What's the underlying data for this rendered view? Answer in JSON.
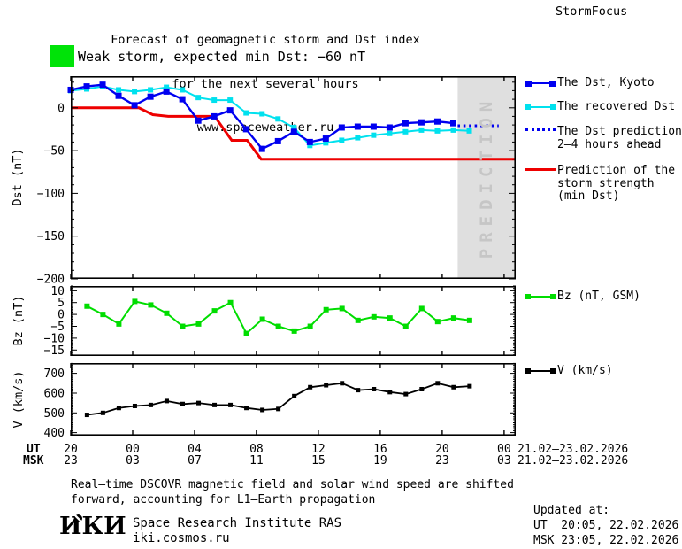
{
  "header": {
    "title_line1": "Forecast of geomagnetic storm and Dst index",
    "title_line2": "for the next several hours",
    "title_line3": "www.spaceweather.ru",
    "brand": "StormFocus"
  },
  "storm_banner": {
    "label": "Weak storm, expected min Dst: −60 nT",
    "swatch_color": "#00e308"
  },
  "legend": {
    "dst_kyoto": "The Dst, Kyoto",
    "recovered": "The recovered Dst",
    "prediction_line1": "The Dst prediction",
    "prediction_line2": "2–4 hours ahead",
    "strength_line1": "Prediction of the",
    "strength_line2": "storm strength",
    "strength_line3": "(min Dst)",
    "bz": "Bz (nT, GSM)",
    "v": "V (km/s)"
  },
  "axis": {
    "ut_label": "UT",
    "msk_label": "MSK",
    "ut_values": [
      "20",
      "00",
      "04",
      "08",
      "12",
      "16",
      "20",
      "00"
    ],
    "msk_values": [
      "23",
      "03",
      "07",
      "11",
      "15",
      "19",
      "23",
      "03"
    ],
    "ut_date": "21.02–23.02.2026",
    "msk_date": "21.02–23.02.2026"
  },
  "footer": {
    "note_line1": "Real–time DSCOVR magnetic field and solar wind speed are shifted",
    "note_line2": "forward, accounting for L1–Earth propagation",
    "logo": "ИКИ",
    "institute": "Space Research Institute RAS",
    "site": "iki.cosmos.ru",
    "updated_label": "Updated at:",
    "updated_ut": "UT  20:05, 22.02.2026",
    "updated_msk": "MSK 23:05, 22.02.2026"
  },
  "colors": {
    "blue": "#0000f0",
    "cyan": "#00e1ee",
    "red": "#ee0000",
    "green": "#00e308",
    "green2": "#00dd00",
    "black": "#000000",
    "band": "#dfdfdf",
    "band_text": "#c6c6c6"
  },
  "chart_data": [
    {
      "id": "dst",
      "type": "line",
      "ylabel": "Dst (nT)",
      "xlim": [
        0,
        28.75
      ],
      "ylim": [
        -200,
        37
      ],
      "yticks": [
        0,
        -50,
        -100,
        -150,
        -200
      ],
      "ytick_minor": 10,
      "xticks": [
        0,
        4,
        8,
        12,
        16,
        20,
        24,
        28
      ],
      "x_note": "hours after 20:00 UT 21.02.2026, hourly points",
      "prediction_band": {
        "x0": 25.0,
        "x1": 28.75,
        "label": "PREDICTION"
      },
      "series": [
        {
          "name": "The recovered Dst",
          "color": "#00e1ee",
          "width": 2,
          "marker": true,
          "marker_size": 6,
          "x_start": 0,
          "step": 1.03,
          "values": [
            20,
            22,
            25,
            21,
            19,
            21,
            24,
            21,
            12,
            9,
            9,
            -6,
            -7,
            -13,
            -23,
            -44,
            -41,
            -38,
            -35,
            -32,
            -30,
            -28,
            -26,
            -27,
            -26,
            -27
          ]
        },
        {
          "name": "Prediction of the storm strength (min Dst)",
          "color": "#ee0000",
          "width": 3,
          "points": [
            [
              0,
              0
            ],
            [
              4.4,
              0
            ],
            [
              5.3,
              -8
            ],
            [
              6.3,
              -10
            ],
            [
              9.3,
              -10
            ],
            [
              10.4,
              -38
            ],
            [
              11.4,
              -38
            ],
            [
              12.3,
              -60
            ],
            [
              28.75,
              -60
            ]
          ]
        },
        {
          "name": "The Dst, Kyoto",
          "color": "#0000f0",
          "width": 2.4,
          "marker": true,
          "marker_size": 7,
          "x_start": 0,
          "step": 1.03,
          "values": [
            21,
            25,
            27,
            14,
            3,
            13,
            19,
            10,
            -15,
            -10,
            -3,
            -25,
            -48,
            -39,
            -28,
            -40,
            -36,
            -23,
            -22,
            -22,
            -23,
            -18,
            -17,
            -16,
            -18
          ]
        },
        {
          "name": "The Dst prediction 2–4 hours ahead",
          "color": "#0000f0",
          "width": 3,
          "style": "dotted",
          "segment": {
            "x0": 25.0,
            "x1": 27.65,
            "y": -21
          }
        }
      ]
    },
    {
      "id": "bz",
      "type": "line",
      "ylabel": "Bz (nT)",
      "xlim": [
        0,
        28.75
      ],
      "ylim": [
        -17.5,
        12
      ],
      "yticks": [
        10,
        5,
        0,
        -5,
        -10,
        -15
      ],
      "ytick_minor": 1,
      "xticks": [
        0,
        4,
        8,
        12,
        16,
        20,
        24,
        28
      ],
      "series": [
        {
          "name": "Bz (nT, GSM)",
          "color": "#00dd00",
          "width": 2,
          "marker": true,
          "marker_size": 6,
          "x_start": 1.05,
          "step": 1.03,
          "values": [
            3.5,
            0,
            -4,
            5.5,
            4,
            0.5,
            -5,
            -4,
            1.5,
            5,
            -8,
            -2,
            -5,
            -7,
            -5,
            2,
            2.5,
            -2.5,
            -1,
            -1.5,
            -5,
            2.5,
            -3,
            -1.5,
            -2.5
          ]
        }
      ]
    },
    {
      "id": "v",
      "type": "line",
      "ylabel": "V (km/s)",
      "xlim": [
        0,
        28.75
      ],
      "ylim": [
        385,
        752
      ],
      "yticks": [
        400,
        500,
        600,
        700
      ],
      "ytick_minor": 10,
      "xticks": [
        0,
        4,
        8,
        12,
        16,
        20,
        24,
        28
      ],
      "series": [
        {
          "name": "V (km/s)",
          "color": "#000000",
          "width": 1.8,
          "marker": true,
          "marker_size": 5,
          "x_start": 1.05,
          "step": 1.03,
          "values": [
            490,
            500,
            525,
            535,
            540,
            560,
            545,
            550,
            540,
            540,
            525,
            515,
            520,
            585,
            630,
            640,
            650,
            615,
            620,
            605,
            595,
            620,
            650,
            630,
            635
          ]
        }
      ]
    }
  ]
}
